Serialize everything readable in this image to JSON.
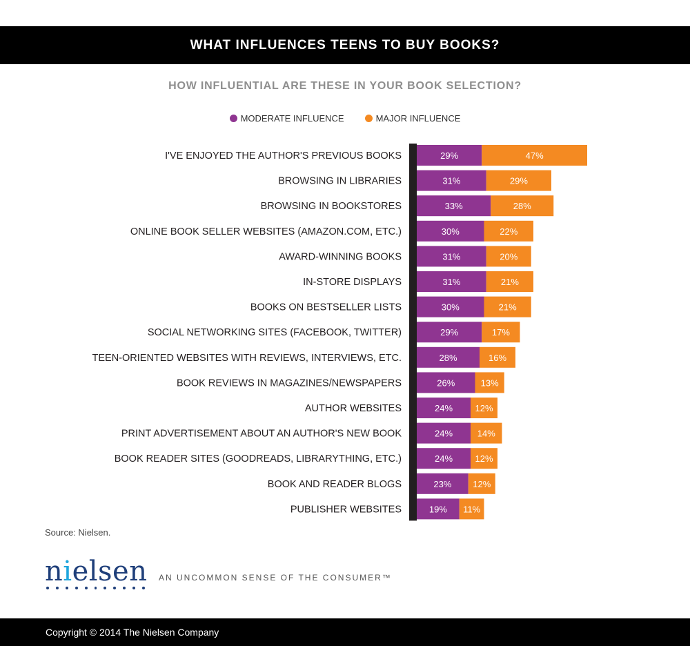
{
  "header": {
    "title": "WHAT INFLUENCES TEENS TO BUY BOOKS?"
  },
  "colors": {
    "moderate": "#8f3591",
    "major": "#f48a22",
    "axis": "#231f20",
    "label_text": "#231f20",
    "bar_text": "#ffffff"
  },
  "chart_data": {
    "type": "bar",
    "orientation": "horizontal",
    "stacked": true,
    "title": "",
    "subtitle": "HOW INFLUENTIAL ARE THESE IN YOUR BOOK SELECTION?",
    "legend_position": "top-center",
    "categories": [
      "I'VE ENJOYED THE AUTHOR'S PREVIOUS BOOKS",
      "BROWSING IN LIBRARIES",
      "BROWSING IN BOOKSTORES",
      "ONLINE BOOK SELLER WEBSITES (AMAZON.COM, ETC.)",
      "AWARD-WINNING BOOKS",
      "IN-STORE DISPLAYS",
      "BOOKS ON BESTSELLER LISTS",
      "SOCIAL NETWORKING SITES (FACEBOOK, TWITTER)",
      "TEEN-ORIENTED WEBSITES WITH REVIEWS, INTERVIEWS, ETC.",
      "BOOK REVIEWS IN MAGAZINES/NEWSPAPERS",
      "AUTHOR WEBSITES",
      "PRINT ADVERTISEMENT ABOUT AN AUTHOR'S NEW BOOK",
      "BOOK READER SITES (GOODREADS, LIBRARYTHING, ETC.)",
      "BOOK AND READER BLOGS",
      "PUBLISHER WEBSITES"
    ],
    "series": [
      {
        "name": "MODERATE INFLUENCE",
        "values": [
          29,
          31,
          33,
          30,
          31,
          31,
          30,
          29,
          28,
          26,
          24,
          24,
          24,
          23,
          19
        ]
      },
      {
        "name": "MAJOR INFLUENCE",
        "values": [
          47,
          29,
          28,
          22,
          20,
          21,
          21,
          17,
          16,
          13,
          12,
          14,
          12,
          12,
          11
        ]
      }
    ],
    "value_suffix": "%",
    "grid": false
  },
  "footer": {
    "source": "Source: Nielsen.",
    "logo": "nielsen",
    "tagline": "AN UNCOMMON SENSE OF THE CONSUMER™",
    "copyright": "Copyright © 2014 The Nielsen Company"
  }
}
